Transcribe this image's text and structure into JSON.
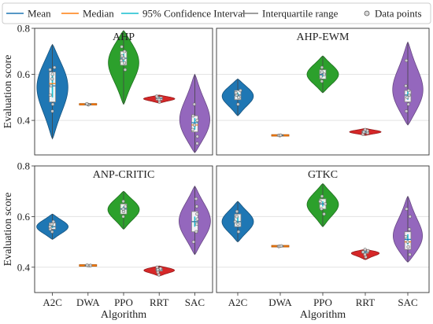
{
  "legend": {
    "items": [
      {
        "label": "Mean",
        "kind": "line",
        "color": "#1f77b4"
      },
      {
        "label": "Median",
        "kind": "line",
        "color": "#ff7f0e"
      },
      {
        "label": "95% Confidence Interval",
        "kind": "line",
        "color": "#17becf"
      },
      {
        "label": "Interquartile range",
        "kind": "line",
        "color": "#7f7f7f"
      },
      {
        "label": "Data points",
        "kind": "marker",
        "color": "#888888"
      }
    ]
  },
  "chart_data": [
    {
      "type": "violin",
      "title": "AHP",
      "xlabel": "",
      "ylabel": "Evaluation score",
      "categories": [
        "A2C",
        "DWA",
        "PPO",
        "RRT",
        "SAC"
      ],
      "ylim": [
        0.25,
        0.8
      ],
      "yticks": [
        0.4,
        0.6,
        0.8
      ],
      "grid": true,
      "series": [
        {
          "category": "A2C",
          "color": "#1f77b4",
          "min": 0.32,
          "max": 0.73,
          "q1": 0.48,
          "median": 0.56,
          "q3": 0.61,
          "mean": 0.55,
          "ci": [
            0.5,
            0.6
          ],
          "points": [
            0.44,
            0.47,
            0.51,
            0.55,
            0.58,
            0.6,
            0.62,
            0.63
          ]
        },
        {
          "category": "DWA",
          "color": "#ff7f0e",
          "min": 0.465,
          "max": 0.475,
          "q1": 0.468,
          "median": 0.47,
          "q3": 0.472,
          "mean": 0.47,
          "ci": [
            0.469,
            0.471
          ],
          "points": [
            0.468,
            0.47,
            0.472
          ]
        },
        {
          "category": "PPO",
          "color": "#2ca02c",
          "min": 0.47,
          "max": 0.79,
          "q1": 0.64,
          "median": 0.67,
          "q3": 0.7,
          "mean": 0.67,
          "ci": [
            0.65,
            0.69
          ],
          "points": [
            0.62,
            0.65,
            0.66,
            0.67,
            0.68,
            0.7,
            0.72
          ]
        },
        {
          "category": "RRT",
          "color": "#d62728",
          "min": 0.475,
          "max": 0.51,
          "q1": 0.488,
          "median": 0.495,
          "q3": 0.502,
          "mean": 0.495,
          "ci": [
            0.49,
            0.5
          ],
          "points": [
            0.48,
            0.49,
            0.5,
            0.505
          ]
        },
        {
          "category": "SAC",
          "color": "#9467bd",
          "min": 0.26,
          "max": 0.6,
          "q1": 0.35,
          "median": 0.38,
          "q3": 0.42,
          "mean": 0.39,
          "ci": [
            0.36,
            0.41
          ],
          "points": [
            0.3,
            0.33,
            0.36,
            0.38,
            0.4,
            0.42,
            0.47
          ]
        }
      ]
    },
    {
      "type": "violin",
      "title": "AHP-EWM",
      "xlabel": "",
      "ylabel": "",
      "categories": [
        "A2C",
        "DWA",
        "PPO",
        "RRT",
        "SAC"
      ],
      "ylim": [
        0.25,
        0.8
      ],
      "yticks": [
        0.4,
        0.6,
        0.8
      ],
      "grid": true,
      "series": [
        {
          "category": "A2C",
          "color": "#1f77b4",
          "min": 0.42,
          "max": 0.58,
          "q1": 0.49,
          "median": 0.51,
          "q3": 0.53,
          "mean": 0.51,
          "ci": [
            0.5,
            0.52
          ],
          "points": [
            0.47,
            0.5,
            0.51,
            0.52,
            0.53
          ]
        },
        {
          "category": "DWA",
          "color": "#ff7f0e",
          "min": 0.333,
          "max": 0.337,
          "q1": 0.334,
          "median": 0.335,
          "q3": 0.336,
          "mean": 0.335,
          "ci": [
            0.334,
            0.336
          ],
          "points": [
            0.334,
            0.335,
            0.336
          ]
        },
        {
          "category": "PPO",
          "color": "#2ca02c",
          "min": 0.52,
          "max": 0.68,
          "q1": 0.58,
          "median": 0.6,
          "q3": 0.62,
          "mean": 0.6,
          "ci": [
            0.59,
            0.61
          ],
          "points": [
            0.57,
            0.59,
            0.6,
            0.61,
            0.63
          ]
        },
        {
          "category": "RRT",
          "color": "#d62728",
          "min": 0.335,
          "max": 0.365,
          "q1": 0.345,
          "median": 0.35,
          "q3": 0.355,
          "mean": 0.35,
          "ci": [
            0.347,
            0.353
          ],
          "points": [
            0.34,
            0.345,
            0.35,
            0.355,
            0.36
          ]
        },
        {
          "category": "SAC",
          "color": "#9467bd",
          "min": 0.38,
          "max": 0.74,
          "q1": 0.48,
          "median": 0.51,
          "q3": 0.53,
          "mean": 0.51,
          "ci": [
            0.49,
            0.53
          ],
          "points": [
            0.44,
            0.47,
            0.5,
            0.51,
            0.53,
            0.55,
            0.66
          ]
        }
      ]
    },
    {
      "type": "violin",
      "title": "ANP-CRITIC",
      "xlabel": "Algorithm",
      "ylabel": "Evaluation score",
      "categories": [
        "A2C",
        "DWA",
        "PPO",
        "RRT",
        "SAC"
      ],
      "ylim": [
        0.3,
        0.8
      ],
      "yticks": [
        0.4,
        0.6,
        0.8
      ],
      "grid": true,
      "series": [
        {
          "category": "A2C",
          "color": "#1f77b4",
          "min": 0.51,
          "max": 0.61,
          "q1": 0.55,
          "median": 0.56,
          "q3": 0.575,
          "mean": 0.56,
          "ci": [
            0.555,
            0.57
          ],
          "points": [
            0.54,
            0.55,
            0.56,
            0.57,
            0.58
          ]
        },
        {
          "category": "DWA",
          "color": "#ff7f0e",
          "min": 0.405,
          "max": 0.41,
          "q1": 0.406,
          "median": 0.407,
          "q3": 0.408,
          "mean": 0.407,
          "ci": [
            0.406,
            0.408
          ],
          "points": [
            0.406,
            0.407,
            0.408
          ]
        },
        {
          "category": "PPO",
          "color": "#2ca02c",
          "min": 0.55,
          "max": 0.7,
          "q1": 0.61,
          "median": 0.63,
          "q3": 0.65,
          "mean": 0.63,
          "ci": [
            0.62,
            0.64
          ],
          "points": [
            0.6,
            0.62,
            0.63,
            0.64,
            0.66
          ]
        },
        {
          "category": "RRT",
          "color": "#d62728",
          "min": 0.365,
          "max": 0.405,
          "q1": 0.385,
          "median": 0.39,
          "q3": 0.395,
          "mean": 0.39,
          "ci": [
            0.387,
            0.393
          ],
          "points": [
            0.37,
            0.38,
            0.39,
            0.395,
            0.4
          ]
        },
        {
          "category": "SAC",
          "color": "#9467bd",
          "min": 0.45,
          "max": 0.72,
          "q1": 0.54,
          "median": 0.58,
          "q3": 0.62,
          "mean": 0.58,
          "ci": [
            0.56,
            0.6
          ],
          "points": [
            0.5,
            0.54,
            0.57,
            0.59,
            0.61,
            0.64,
            0.67
          ]
        }
      ]
    },
    {
      "type": "violin",
      "title": "GTKC",
      "xlabel": "Algorithm",
      "ylabel": "",
      "categories": [
        "A2C",
        "DWA",
        "PPO",
        "RRT",
        "SAC"
      ],
      "ylim": [
        0.3,
        0.8
      ],
      "yticks": [
        0.4,
        0.6,
        0.8
      ],
      "grid": true,
      "series": [
        {
          "category": "A2C",
          "color": "#1f77b4",
          "min": 0.5,
          "max": 0.66,
          "q1": 0.56,
          "median": 0.58,
          "q3": 0.61,
          "mean": 0.58,
          "ci": [
            0.57,
            0.6
          ],
          "points": [
            0.54,
            0.57,
            0.58,
            0.6,
            0.62
          ]
        },
        {
          "category": "DWA",
          "color": "#ff7f0e",
          "min": 0.48,
          "max": 0.486,
          "q1": 0.482,
          "median": 0.483,
          "q3": 0.484,
          "mean": 0.483,
          "ci": [
            0.482,
            0.484
          ],
          "points": [
            0.482,
            0.483,
            0.484
          ]
        },
        {
          "category": "PPO",
          "color": "#2ca02c",
          "min": 0.56,
          "max": 0.73,
          "q1": 0.63,
          "median": 0.65,
          "q3": 0.67,
          "mean": 0.65,
          "ci": [
            0.64,
            0.66
          ],
          "points": [
            0.61,
            0.63,
            0.65,
            0.66,
            0.68
          ]
        },
        {
          "category": "RRT",
          "color": "#d62728",
          "min": 0.43,
          "max": 0.47,
          "q1": 0.455,
          "median": 0.46,
          "q3": 0.465,
          "mean": 0.46,
          "ci": [
            0.457,
            0.463
          ],
          "points": [
            0.44,
            0.45,
            0.46,
            0.465,
            0.47
          ]
        },
        {
          "category": "SAC",
          "color": "#9467bd",
          "min": 0.42,
          "max": 0.68,
          "q1": 0.47,
          "median": 0.5,
          "q3": 0.54,
          "mean": 0.51,
          "ci": [
            0.49,
            0.53
          ],
          "points": [
            0.45,
            0.48,
            0.5,
            0.52,
            0.55,
            0.6,
            0.63
          ]
        }
      ]
    }
  ]
}
